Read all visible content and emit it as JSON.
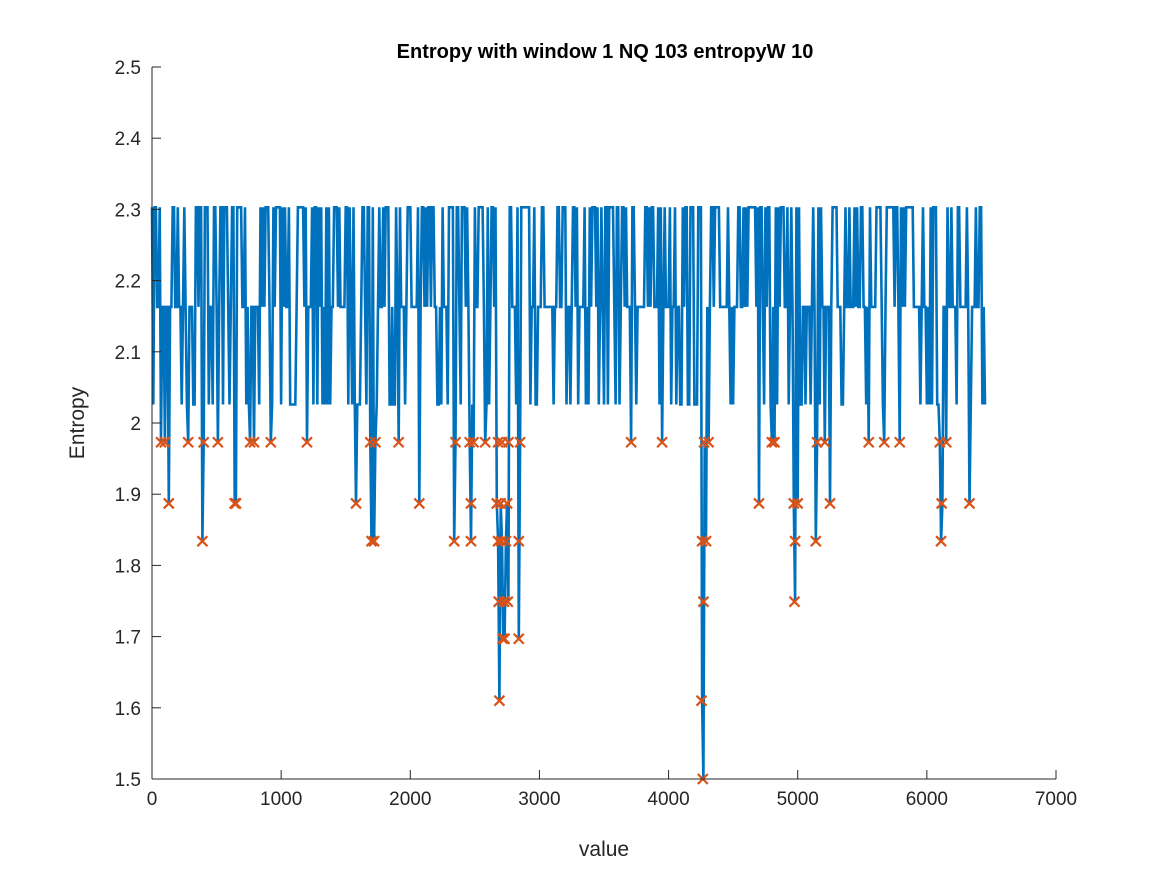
{
  "chart_data": {
    "type": "line",
    "title": "Entropy with window 1  NQ 103  entropyW 10",
    "xlabel": "value",
    "ylabel": "Entropy",
    "xlim": [
      0,
      7000
    ],
    "ylim": [
      1.5,
      2.5
    ],
    "xticks": [
      "0",
      "1000",
      "2000",
      "3000",
      "4000",
      "5000",
      "6000",
      "7000"
    ],
    "yticks": [
      "1.5",
      "1.6",
      "1.7",
      "1.8",
      "1.9",
      "2",
      "2.1",
      "2.2",
      "2.3",
      "2.4",
      "2.5"
    ],
    "grid": false,
    "series": [
      {
        "color": "#0072BD",
        "style": "line",
        "x_range": [
          0,
          6450
        ],
        "values_seen": [
          2.303,
          2.163,
          2.026
        ],
        "dips": [
          {
            "x": 70,
            "y": 1.973
          },
          {
            "x": 100,
            "y": 1.973
          },
          {
            "x": 130,
            "y": 1.887
          },
          {
            "x": 280,
            "y": 1.973
          },
          {
            "x": 390,
            "y": 1.834
          },
          {
            "x": 400,
            "y": 1.973
          },
          {
            "x": 510,
            "y": 1.973
          },
          {
            "x": 640,
            "y": 1.887
          },
          {
            "x": 650,
            "y": 1.887
          },
          {
            "x": 760,
            "y": 1.973
          },
          {
            "x": 790,
            "y": 1.973
          },
          {
            "x": 920,
            "y": 1.973
          },
          {
            "x": 1200,
            "y": 1.973
          },
          {
            "x": 1580,
            "y": 1.887
          },
          {
            "x": 1690,
            "y": 1.973
          },
          {
            "x": 1700,
            "y": 1.834
          },
          {
            "x": 1720,
            "y": 1.834
          },
          {
            "x": 1730,
            "y": 1.973
          },
          {
            "x": 1910,
            "y": 1.973
          },
          {
            "x": 2070,
            "y": 1.887
          },
          {
            "x": 2340,
            "y": 1.834
          },
          {
            "x": 2350,
            "y": 1.973
          },
          {
            "x": 2460,
            "y": 1.973
          },
          {
            "x": 2470,
            "y": 1.834
          },
          {
            "x": 2470,
            "y": 1.887
          },
          {
            "x": 2490,
            "y": 1.973
          },
          {
            "x": 2580,
            "y": 1.973
          },
          {
            "x": 2670,
            "y": 1.887
          },
          {
            "x": 2680,
            "y": 1.834
          },
          {
            "x": 2680,
            "y": 1.973
          },
          {
            "x": 2685,
            "y": 1.749
          },
          {
            "x": 2690,
            "y": 1.61
          },
          {
            "x": 2700,
            "y": 1.887
          },
          {
            "x": 2705,
            "y": 1.834
          },
          {
            "x": 2710,
            "y": 1.973
          },
          {
            "x": 2715,
            "y": 1.697
          },
          {
            "x": 2725,
            "y": 1.749
          },
          {
            "x": 2730,
            "y": 1.697
          },
          {
            "x": 2740,
            "y": 1.834
          },
          {
            "x": 2750,
            "y": 1.887
          },
          {
            "x": 2755,
            "y": 1.749
          },
          {
            "x": 2760,
            "y": 1.973
          },
          {
            "x": 2840,
            "y": 1.697
          },
          {
            "x": 2840,
            "y": 1.834
          },
          {
            "x": 2850,
            "y": 1.973
          },
          {
            "x": 3710,
            "y": 1.973
          },
          {
            "x": 3950,
            "y": 1.973
          },
          {
            "x": 4255,
            "y": 1.61
          },
          {
            "x": 4260,
            "y": 1.834
          },
          {
            "x": 4265,
            "y": 1.5
          },
          {
            "x": 4270,
            "y": 1.749
          },
          {
            "x": 4275,
            "y": 1.973
          },
          {
            "x": 4290,
            "y": 1.834
          },
          {
            "x": 4310,
            "y": 1.973
          },
          {
            "x": 4700,
            "y": 1.887
          },
          {
            "x": 4800,
            "y": 1.973
          },
          {
            "x": 4820,
            "y": 1.973
          },
          {
            "x": 4970,
            "y": 1.887
          },
          {
            "x": 4975,
            "y": 1.749
          },
          {
            "x": 4980,
            "y": 1.834
          },
          {
            "x": 5000,
            "y": 1.887
          },
          {
            "x": 5140,
            "y": 1.834
          },
          {
            "x": 5150,
            "y": 1.973
          },
          {
            "x": 5210,
            "y": 1.973
          },
          {
            "x": 5250,
            "y": 1.887
          },
          {
            "x": 5550,
            "y": 1.973
          },
          {
            "x": 5670,
            "y": 1.973
          },
          {
            "x": 5790,
            "y": 1.973
          },
          {
            "x": 6100,
            "y": 1.973
          },
          {
            "x": 6110,
            "y": 1.834
          },
          {
            "x": 6115,
            "y": 1.887
          },
          {
            "x": 6150,
            "y": 1.973
          },
          {
            "x": 6330,
            "y": 1.887
          }
        ]
      },
      {
        "color": "#D95319",
        "style": "x-marker",
        "points": [
          {
            "x": 70,
            "y": 1.973
          },
          {
            "x": 100,
            "y": 1.973
          },
          {
            "x": 130,
            "y": 1.887
          },
          {
            "x": 280,
            "y": 1.973
          },
          {
            "x": 390,
            "y": 1.834
          },
          {
            "x": 400,
            "y": 1.973
          },
          {
            "x": 510,
            "y": 1.973
          },
          {
            "x": 640,
            "y": 1.887
          },
          {
            "x": 650,
            "y": 1.887
          },
          {
            "x": 760,
            "y": 1.973
          },
          {
            "x": 790,
            "y": 1.973
          },
          {
            "x": 920,
            "y": 1.973
          },
          {
            "x": 1200,
            "y": 1.973
          },
          {
            "x": 1580,
            "y": 1.887
          },
          {
            "x": 1690,
            "y": 1.973
          },
          {
            "x": 1700,
            "y": 1.834
          },
          {
            "x": 1720,
            "y": 1.834
          },
          {
            "x": 1730,
            "y": 1.973
          },
          {
            "x": 1910,
            "y": 1.973
          },
          {
            "x": 2070,
            "y": 1.887
          },
          {
            "x": 2340,
            "y": 1.834
          },
          {
            "x": 2350,
            "y": 1.973
          },
          {
            "x": 2460,
            "y": 1.973
          },
          {
            "x": 2470,
            "y": 1.834
          },
          {
            "x": 2470,
            "y": 1.887
          },
          {
            "x": 2490,
            "y": 1.973
          },
          {
            "x": 2580,
            "y": 1.973
          },
          {
            "x": 2670,
            "y": 1.887
          },
          {
            "x": 2680,
            "y": 1.834
          },
          {
            "x": 2680,
            "y": 1.973
          },
          {
            "x": 2685,
            "y": 1.749
          },
          {
            "x": 2690,
            "y": 1.61
          },
          {
            "x": 2700,
            "y": 1.887
          },
          {
            "x": 2705,
            "y": 1.834
          },
          {
            "x": 2710,
            "y": 1.973
          },
          {
            "x": 2715,
            "y": 1.697
          },
          {
            "x": 2725,
            "y": 1.749
          },
          {
            "x": 2730,
            "y": 1.697
          },
          {
            "x": 2740,
            "y": 1.834
          },
          {
            "x": 2750,
            "y": 1.887
          },
          {
            "x": 2755,
            "y": 1.749
          },
          {
            "x": 2760,
            "y": 1.973
          },
          {
            "x": 2840,
            "y": 1.697
          },
          {
            "x": 2840,
            "y": 1.834
          },
          {
            "x": 2850,
            "y": 1.973
          },
          {
            "x": 3710,
            "y": 1.973
          },
          {
            "x": 3950,
            "y": 1.973
          },
          {
            "x": 4255,
            "y": 1.61
          },
          {
            "x": 4260,
            "y": 1.834
          },
          {
            "x": 4265,
            "y": 1.5
          },
          {
            "x": 4270,
            "y": 1.749
          },
          {
            "x": 4275,
            "y": 1.973
          },
          {
            "x": 4290,
            "y": 1.834
          },
          {
            "x": 4310,
            "y": 1.973
          },
          {
            "x": 4700,
            "y": 1.887
          },
          {
            "x": 4800,
            "y": 1.973
          },
          {
            "x": 4820,
            "y": 1.973
          },
          {
            "x": 4970,
            "y": 1.887
          },
          {
            "x": 4975,
            "y": 1.749
          },
          {
            "x": 4980,
            "y": 1.834
          },
          {
            "x": 5000,
            "y": 1.887
          },
          {
            "x": 5140,
            "y": 1.834
          },
          {
            "x": 5150,
            "y": 1.973
          },
          {
            "x": 5210,
            "y": 1.973
          },
          {
            "x": 5250,
            "y": 1.887
          },
          {
            "x": 5550,
            "y": 1.973
          },
          {
            "x": 5670,
            "y": 1.973
          },
          {
            "x": 5790,
            "y": 1.973
          },
          {
            "x": 6100,
            "y": 1.973
          },
          {
            "x": 6110,
            "y": 1.834
          },
          {
            "x": 6115,
            "y": 1.887
          },
          {
            "x": 6150,
            "y": 1.973
          },
          {
            "x": 6330,
            "y": 1.887
          }
        ]
      }
    ]
  }
}
